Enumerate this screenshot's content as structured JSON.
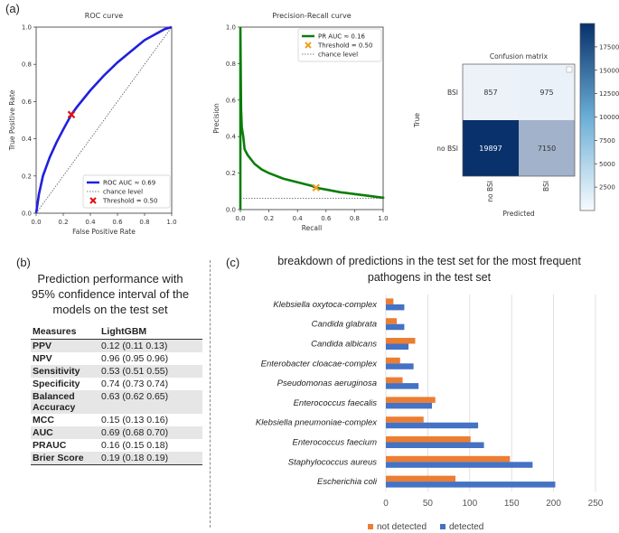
{
  "panels": {
    "a": "(a)",
    "b": "(b)",
    "c": "(c)"
  },
  "chart_data": [
    {
      "type": "line",
      "title": "ROC curve",
      "xlabel": "False Positive Rate",
      "ylabel": "True Positive Rate",
      "xlim": [
        0,
        1
      ],
      "ylim": [
        0,
        1
      ],
      "xticks": [
        "0.0",
        "0.2",
        "0.4",
        "0.6",
        "0.8",
        "1.0"
      ],
      "yticks": [
        "0.0",
        "0.2",
        "0.4",
        "0.6",
        "0.8",
        "1.0"
      ],
      "series": [
        {
          "name": "ROC AUC ≈ 0.69",
          "color": "#1f1fe0",
          "x": [
            0,
            0.02,
            0.05,
            0.1,
            0.15,
            0.2,
            0.26,
            0.3,
            0.4,
            0.5,
            0.6,
            0.7,
            0.8,
            0.9,
            0.95,
            1.0
          ],
          "y": [
            0,
            0.1,
            0.2,
            0.3,
            0.38,
            0.45,
            0.53,
            0.57,
            0.66,
            0.74,
            0.81,
            0.87,
            0.93,
            0.97,
            0.99,
            1.0
          ]
        },
        {
          "name": "chance level",
          "color": "#555555",
          "style": "dotted",
          "x": [
            0,
            1
          ],
          "y": [
            0,
            1
          ]
        }
      ],
      "marker": {
        "name": "Threshold = 0.50",
        "x": 0.26,
        "y": 0.53,
        "color": "#e01010"
      }
    },
    {
      "type": "line",
      "title": "Precision-Recall curve",
      "xlabel": "Recall",
      "ylabel": "Precision",
      "xlim": [
        0,
        1
      ],
      "ylim": [
        0,
        1
      ],
      "xticks": [
        "0.0",
        "0.2",
        "0.4",
        "0.6",
        "0.8",
        "1.0"
      ],
      "yticks": [
        "0.0",
        "0.2",
        "0.4",
        "0.6",
        "0.8",
        "1.0"
      ],
      "series": [
        {
          "name": "PR AUC ≈ 0.16",
          "color": "#0a7d0a",
          "x": [
            0,
            0,
            0.005,
            0.01,
            0.02,
            0.03,
            0.05,
            0.08,
            0.1,
            0.15,
            0.2,
            0.3,
            0.4,
            0.5,
            0.53,
            0.6,
            0.7,
            0.8,
            0.9,
            1.0,
            1.0
          ],
          "y": [
            0,
            1.0,
            0.55,
            0.45,
            0.4,
            0.33,
            0.3,
            0.27,
            0.25,
            0.22,
            0.2,
            0.17,
            0.15,
            0.13,
            0.12,
            0.11,
            0.095,
            0.085,
            0.075,
            0.065,
            0.06
          ]
        },
        {
          "name": "chance level",
          "color": "#555555",
          "style": "dotted",
          "x": [
            0,
            1
          ],
          "y": [
            0.062,
            0.062
          ]
        }
      ],
      "marker": {
        "name": "Threshold = 0.50",
        "x": 0.53,
        "y": 0.12,
        "color": "#f0a020"
      }
    },
    {
      "type": "heatmap",
      "title": "Confusion matrix",
      "xlabel": "Predicted",
      "ylabel": "True",
      "rows": [
        "BSI",
        "no BSI"
      ],
      "cols": [
        "no BSI",
        "BSI"
      ],
      "values": [
        [
          857,
          975
        ],
        [
          19897,
          7150
        ]
      ],
      "colorbar": {
        "min": 0,
        "max": 20000,
        "ticks": [
          "2500",
          "5000",
          "7500",
          "10000",
          "12500",
          "15000",
          "17500"
        ]
      }
    },
    {
      "type": "bar",
      "orientation": "horizontal",
      "title": "breakdown of predictions in the test set for the most frequent pathogens in the test set",
      "categories": [
        "Klebsiella oxytoca-complex",
        "Candida glabrata",
        "Candida albicans",
        "Enterobacter cloacae-complex",
        "Pseudomonas aeruginosa",
        "Enterococcus faecalis",
        "Klebsiella pneumoniae-complex",
        "Enterococcus faecium",
        "Staphylococcus aureus",
        "Escherichia coli"
      ],
      "series": [
        {
          "name": "not detected",
          "color": "#ed7d31",
          "values": [
            9,
            13,
            35,
            17,
            20,
            59,
            45,
            101,
            148,
            83
          ]
        },
        {
          "name": "detected",
          "color": "#4472c4",
          "values": [
            22,
            22,
            27,
            33,
            39,
            55,
            110,
            117,
            175,
            202
          ]
        }
      ],
      "xlim": [
        0,
        250
      ],
      "xticks": [
        "0",
        "50",
        "100",
        "150",
        "200",
        "250"
      ]
    }
  ],
  "performance": {
    "title_line1": "Prediction performance with",
    "title_line2": "95% confidence interval of the",
    "title_line3": "models on the test set",
    "header": [
      "Measures",
      "LightGBM"
    ],
    "rows": [
      {
        "measure": "PPV",
        "value": "0.12 (0.11 0.13)"
      },
      {
        "measure": "NPV",
        "value": "0.96 (0.95 0.96)"
      },
      {
        "measure": "Sensitivity",
        "value": "0.53 (0.51 0.55)"
      },
      {
        "measure": "Specificity",
        "value": "0.74 (0.73 0.74)"
      },
      {
        "measure": "Balanced Accuracy",
        "value": "0.63 (0.62 0.65)"
      },
      {
        "measure": "MCC",
        "value": "0.15 (0.13 0.16)"
      },
      {
        "measure": "AUC",
        "value": "0.69 (0.68 0.70)"
      },
      {
        "measure": "PRAUC",
        "value": "0.16 (0.15 0.18)"
      },
      {
        "measure": "Brier Score",
        "value": "0.19 (0.18 0.19)"
      }
    ]
  }
}
